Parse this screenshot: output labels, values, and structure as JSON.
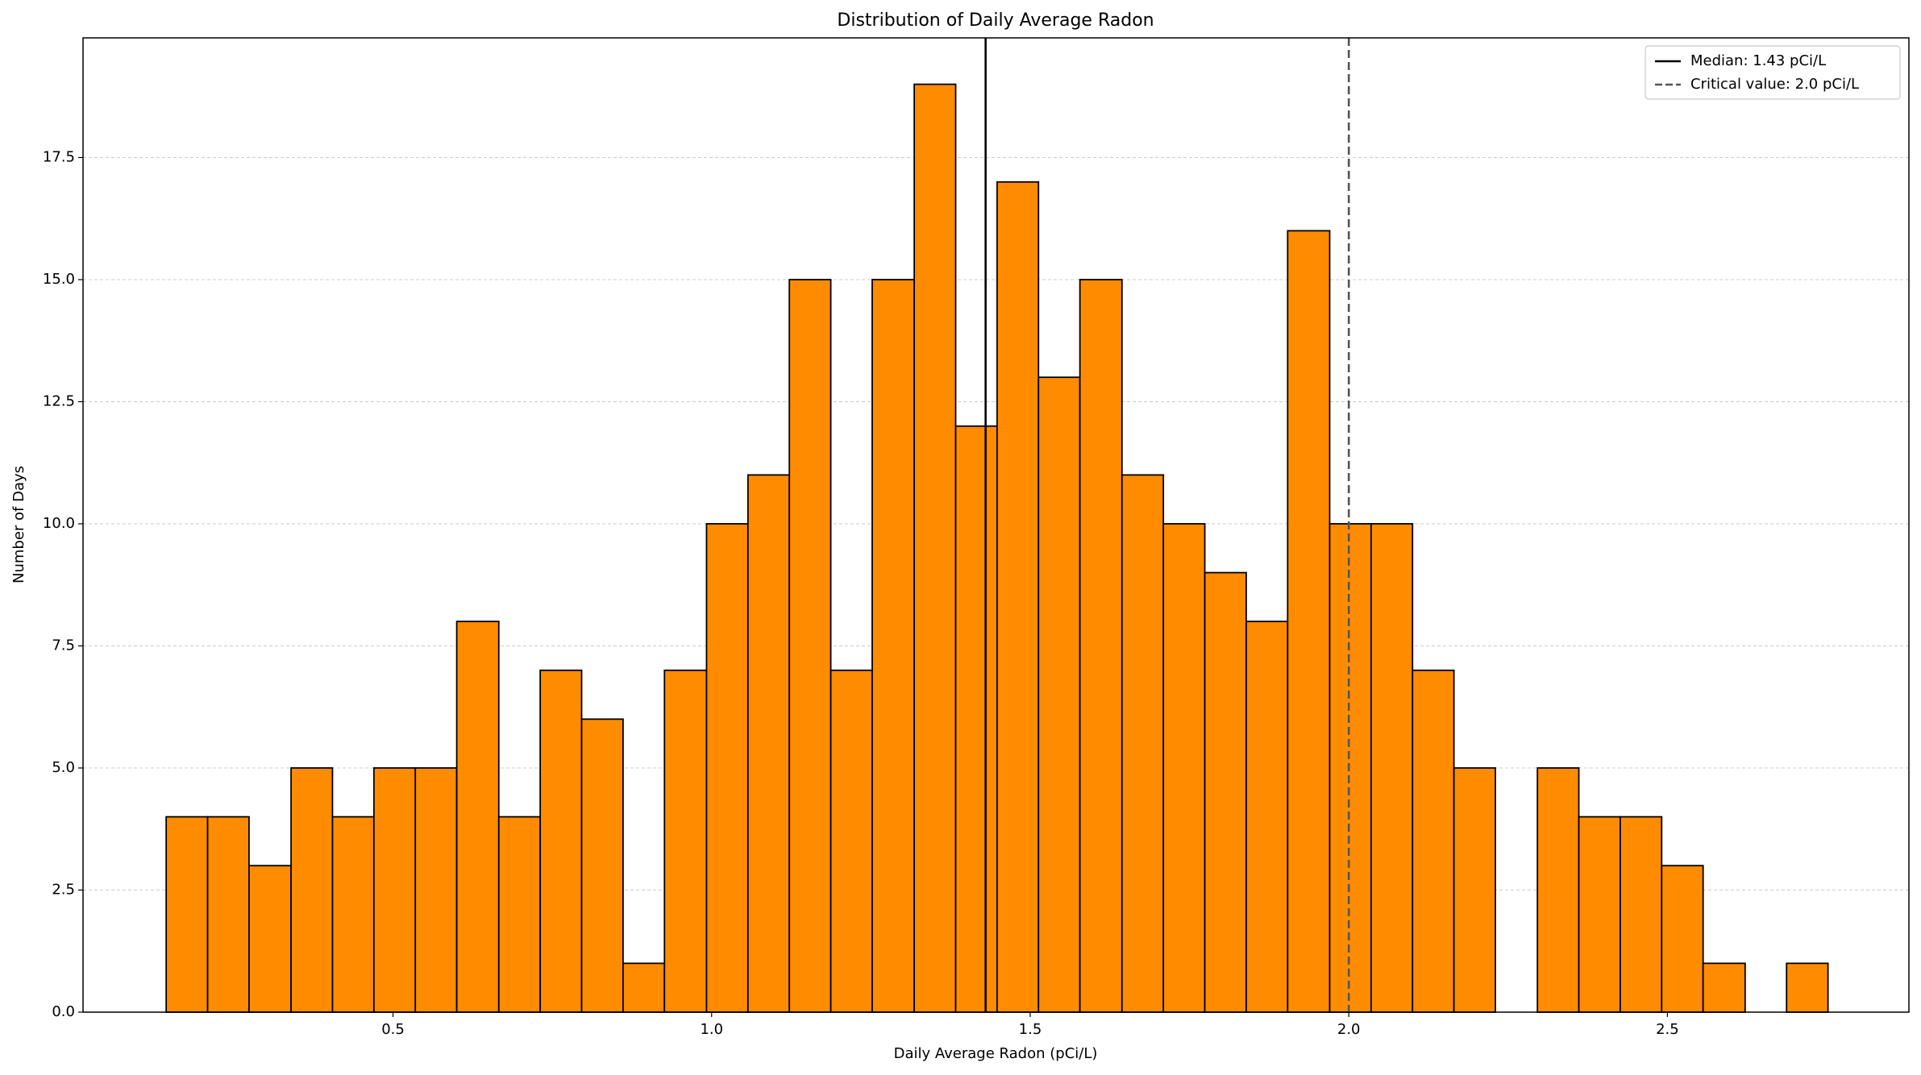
{
  "chart_data": {
    "type": "histogram",
    "title": "Distribution of Daily Average Radon",
    "x_label": "Daily Average Radon (pCi/L)",
    "y_label": "Number of Days",
    "bins": [
      0.144,
      0.209,
      0.274,
      0.34,
      0.405,
      0.47,
      0.535,
      0.6,
      0.666,
      0.731,
      0.796,
      0.861,
      0.926,
      0.992,
      1.057,
      1.122,
      1.187,
      1.252,
      1.318,
      1.383,
      1.448,
      1.513,
      1.578,
      1.644,
      1.709,
      1.774,
      1.839,
      1.904,
      1.97,
      2.035,
      2.1,
      2.165,
      2.23,
      2.296,
      2.361,
      2.426,
      2.491,
      2.556,
      2.622,
      2.687,
      2.752
    ],
    "values": [
      4,
      4,
      3,
      5,
      4,
      5,
      5,
      8,
      4,
      7,
      6,
      1,
      7,
      10,
      11,
      15,
      7,
      15,
      19,
      12,
      17,
      13,
      15,
      11,
      10,
      9,
      8,
      16,
      10,
      10,
      7,
      5,
      0,
      5,
      4,
      4,
      3,
      1,
      0,
      1
    ],
    "color": "#ff8c00",
    "edge_color": "#000000",
    "xlim": [
      0.0135,
      2.879
    ],
    "ylim": [
      0,
      19.95
    ],
    "xticks": [
      0.5,
      {
        "value": 1.0,
        "label": "1.0"
      },
      1.5,
      {
        "value": 2.0,
        "label": "2.0"
      },
      2.5
    ],
    "yticks": [
      {
        "value": 0,
        "label": "0.0"
      },
      2.5,
      {
        "value": 5,
        "label": "5.0"
      },
      7.5,
      {
        "value": 10,
        "label": "10.0"
      },
      12.5,
      {
        "value": 15,
        "label": "15.0"
      },
      17.5
    ],
    "grid": true,
    "legend": "upper right",
    "lines": [
      {
        "name": "Median: 1.43 pCi/L",
        "value": 1.43,
        "color": "#000000",
        "style": "solid"
      },
      {
        "name": "Critical value: 2.0 pCi/L",
        "value": 2.0,
        "color": "#555555",
        "style": "dashed"
      }
    ]
  }
}
